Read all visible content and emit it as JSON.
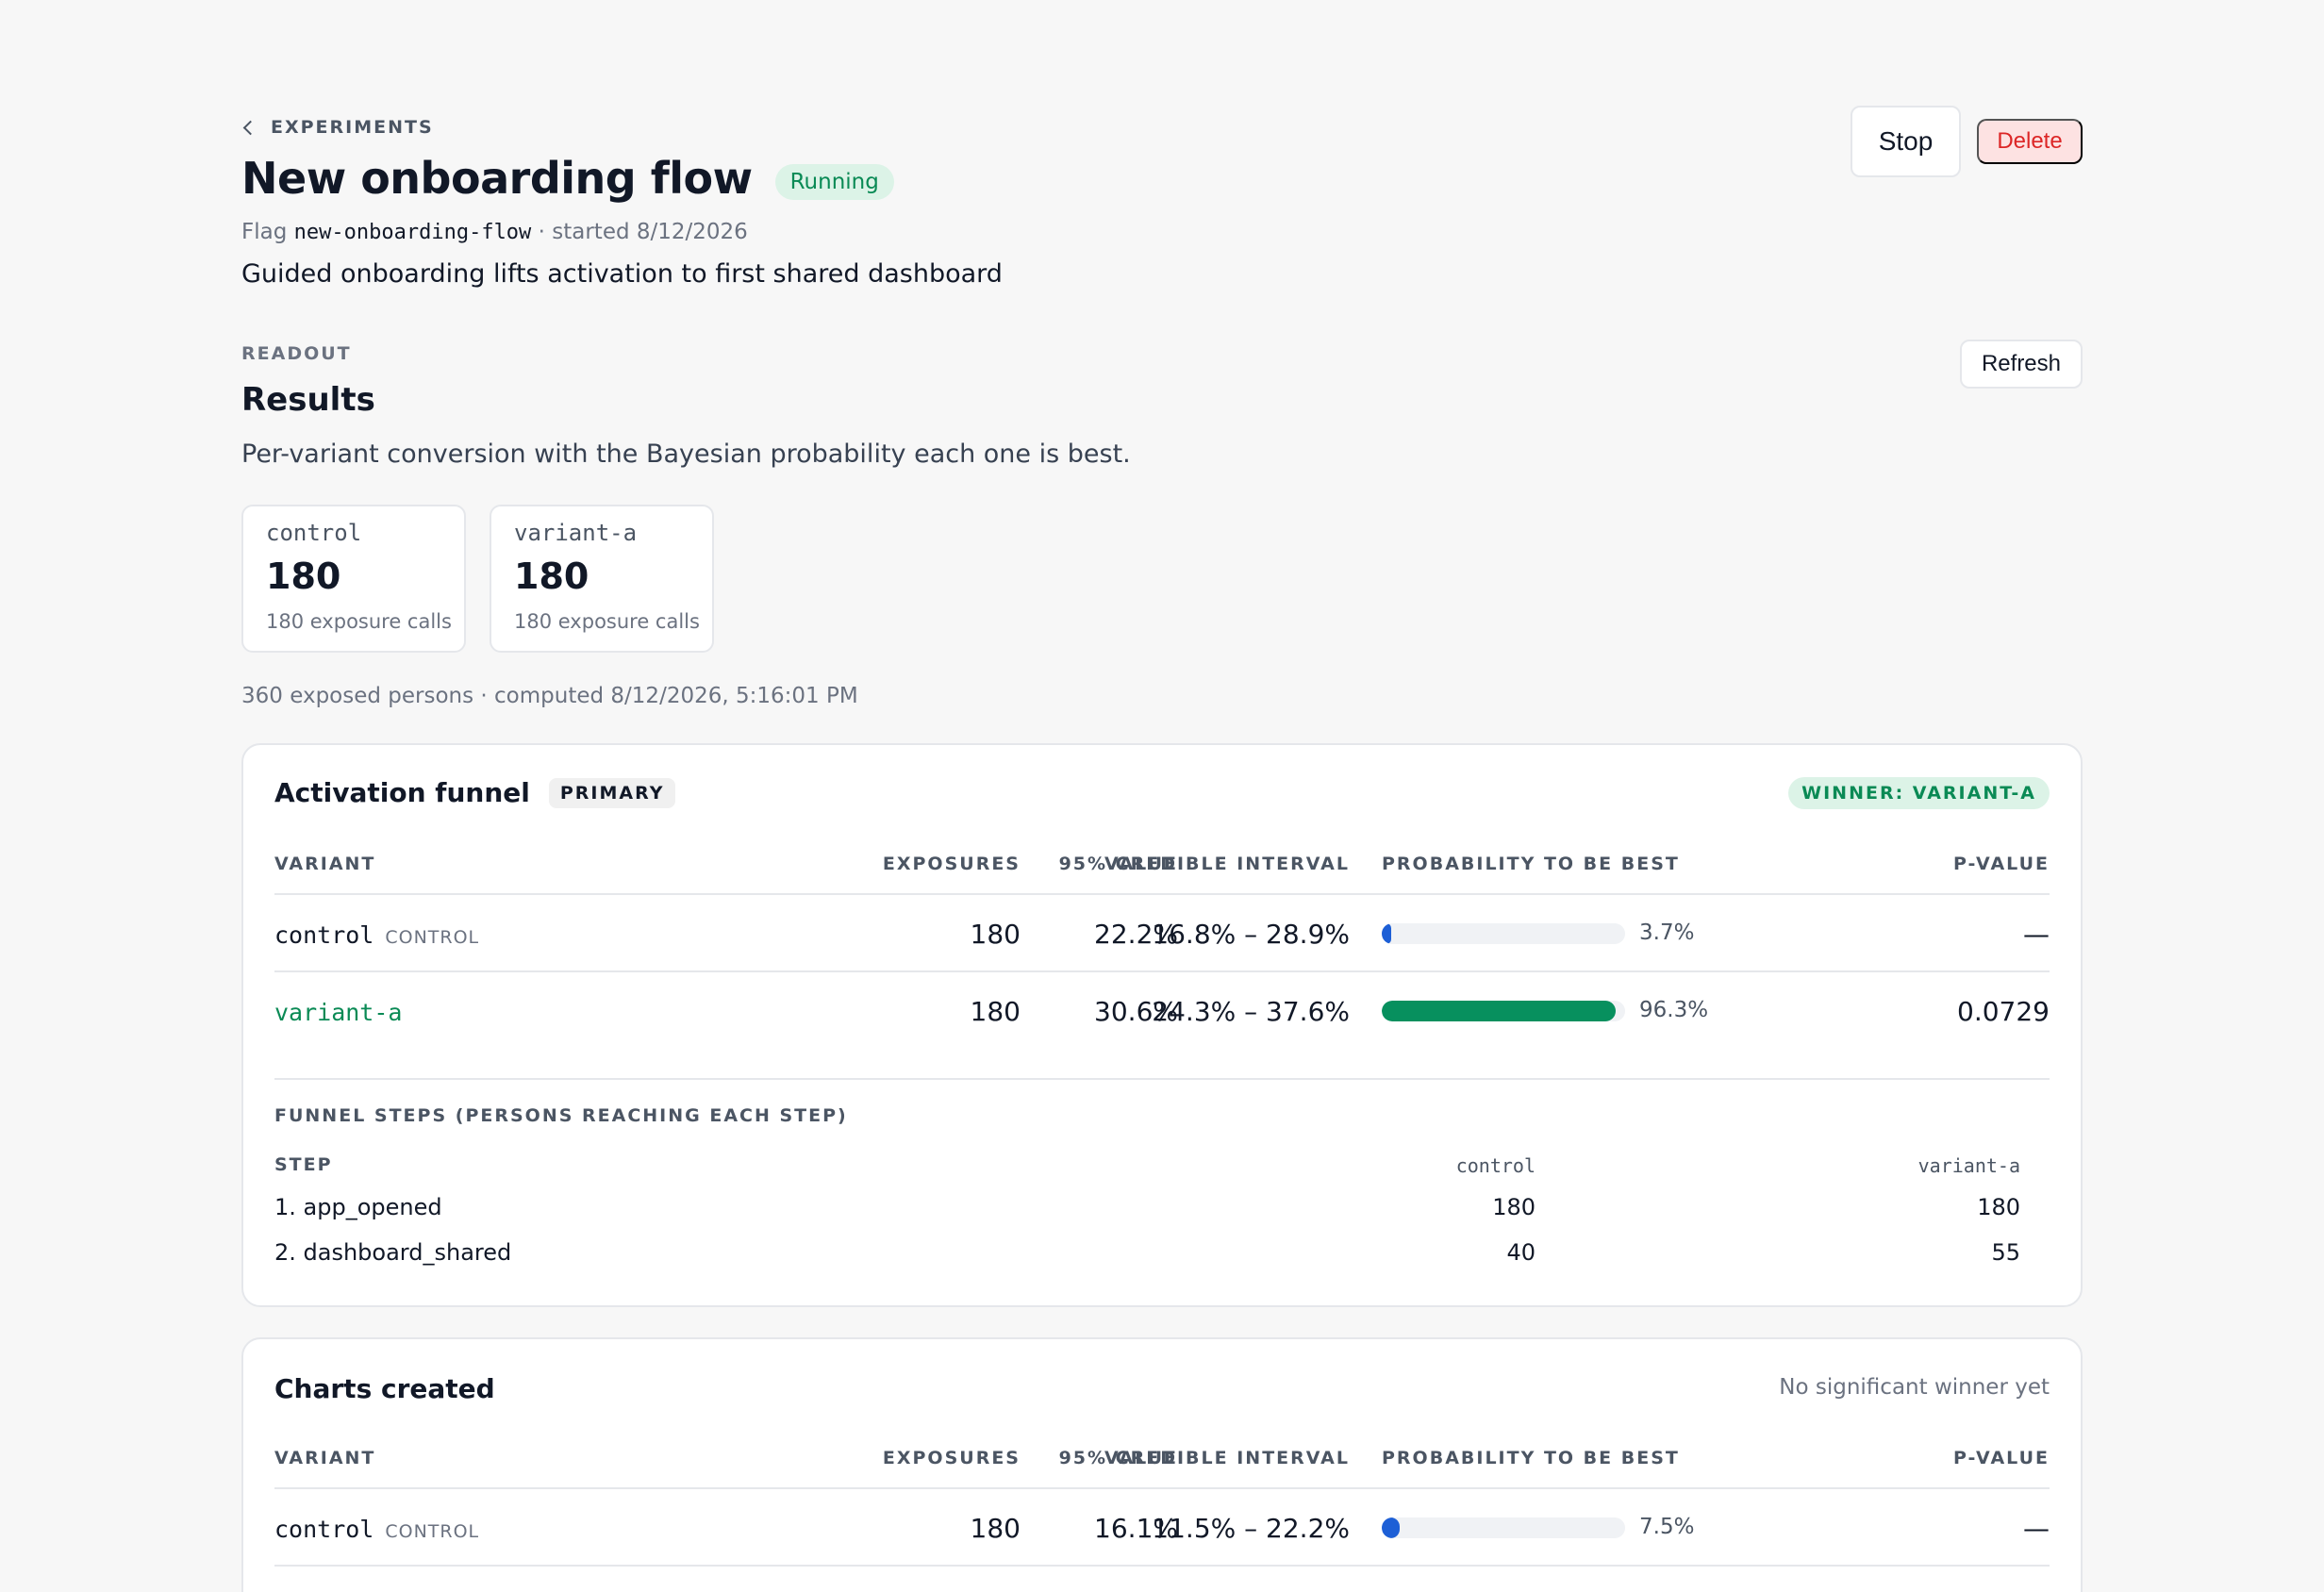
{
  "breadcrumb": {
    "label": "EXPERIMENTS"
  },
  "header": {
    "title": "New onboarding flow",
    "status": "Running",
    "flag_prefix": "Flag",
    "flag_key": "new-onboarding-flow",
    "started_text": "· started 8/12/2026",
    "hypothesis": "Guided onboarding lifts activation to first shared dashboard",
    "stop_label": "Stop",
    "delete_label": "Delete"
  },
  "readout": {
    "kicker": "READOUT",
    "title": "Results",
    "description": "Per-variant conversion with the Bayesian probability each one is best.",
    "refresh_label": "Refresh",
    "variants": [
      {
        "name": "control",
        "count": "180",
        "sub": "180 exposure calls"
      },
      {
        "name": "variant-a",
        "count": "180",
        "sub": "180 exposure calls"
      }
    ],
    "summary": "360 exposed persons · computed 8/12/2026, 5:16:01 PM"
  },
  "columns": {
    "variant": "VARIANT",
    "exposures": "EXPOSURES",
    "value": "VALUE",
    "interval": "95% CREDIBLE INTERVAL",
    "prob": "PROBABILITY TO BE BEST",
    "pvalue": "P-VALUE"
  },
  "metrics": [
    {
      "title": "Activation funnel",
      "tag": "PRIMARY",
      "verdict": "WINNER: VARIANT-A",
      "rows": [
        {
          "variant": "control",
          "control_tag": "CONTROL",
          "exposures": "180",
          "value": "22.2%",
          "interval": "16.8% – 28.9%",
          "prob": 0.037,
          "prob_label": "3.7%",
          "pvalue": "—",
          "color": "#1d5fd6"
        },
        {
          "variant": "variant-a",
          "control_tag": "",
          "exposures": "180",
          "value": "30.6%",
          "interval": "24.3% – 37.6%",
          "prob": 0.963,
          "prob_label": "96.3%",
          "pvalue": "0.0729",
          "color": "#07905e"
        }
      ],
      "funnel": {
        "kicker": "FUNNEL STEPS (PERSONS REACHING EACH STEP)",
        "step_header": "STEP",
        "variant_headers": [
          "control",
          "variant-a"
        ],
        "steps": [
          {
            "label": "1. app_opened",
            "values": [
              "180",
              "180"
            ]
          },
          {
            "label": "2. dashboard_shared",
            "values": [
              "40",
              "55"
            ]
          }
        ]
      }
    },
    {
      "title": "Charts created",
      "verdict": "No significant winner yet",
      "rows": [
        {
          "variant": "control",
          "control_tag": "CONTROL",
          "exposures": "180",
          "value": "16.1%",
          "interval": "11.5% – 22.2%",
          "prob": 0.075,
          "prob_label": "7.5%",
          "pvalue": "—",
          "color": "#1d5fd6"
        }
      ]
    }
  ]
}
